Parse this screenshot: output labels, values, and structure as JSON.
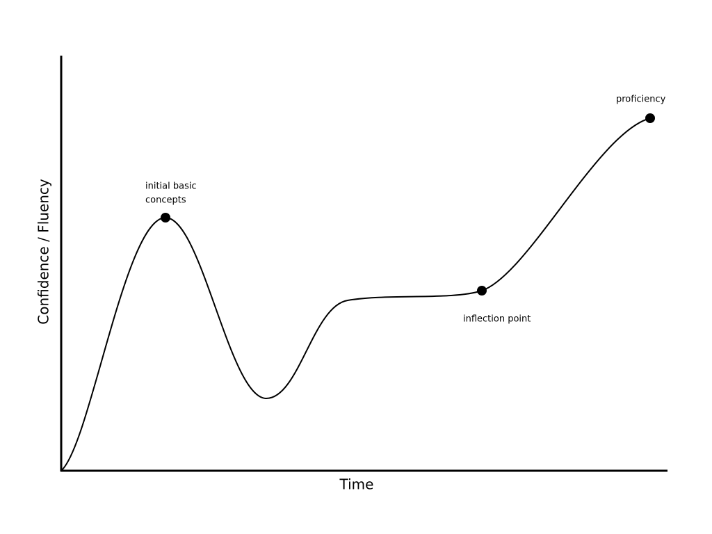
{
  "axes": {
    "x_label": "Time",
    "y_label": "Confidence / Fluency"
  },
  "points": [
    {
      "lines": [
        "initial basic",
        "concepts"
      ]
    },
    {
      "lines": [
        "inflection point"
      ]
    },
    {
      "lines": [
        "proficiency"
      ]
    }
  ]
}
